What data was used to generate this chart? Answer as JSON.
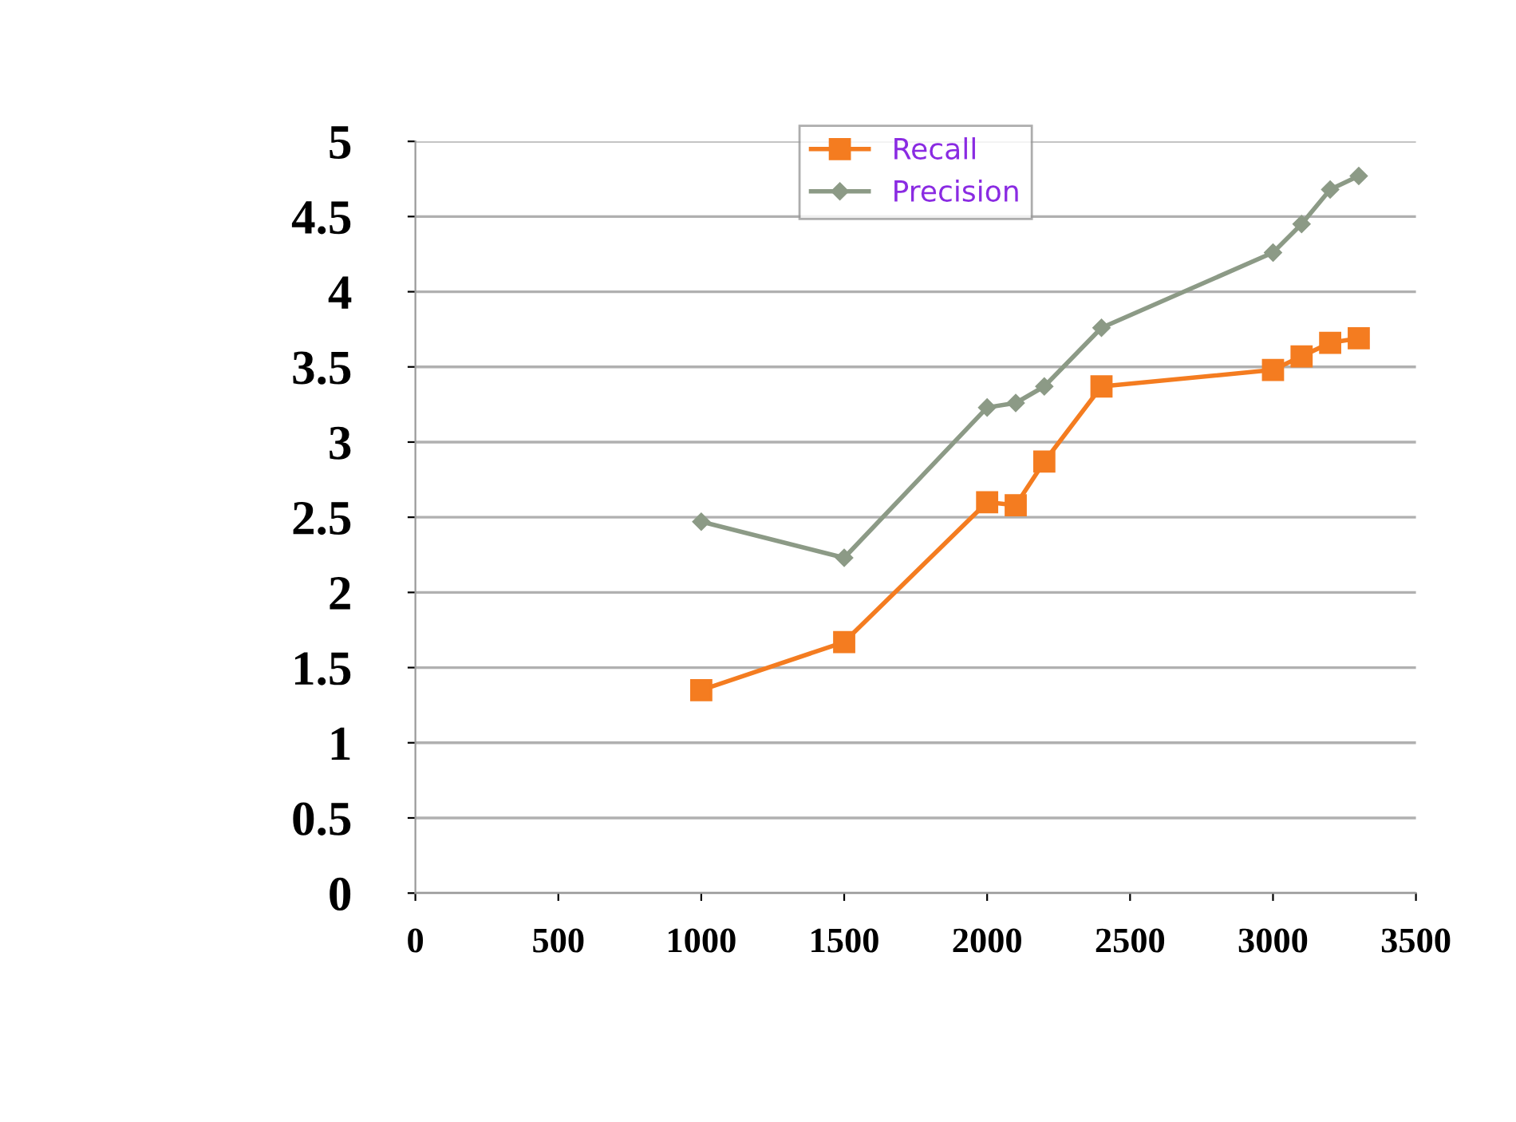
{
  "chart_data": {
    "type": "line",
    "x": [
      1000,
      1500,
      2000,
      2100,
      2200,
      2400,
      3000,
      3100,
      3200,
      3300
    ],
    "series": [
      {
        "name": "Recall",
        "color": "#f47c20",
        "marker": "square",
        "values": [
          1.35,
          1.67,
          2.6,
          2.58,
          2.87,
          3.37,
          3.48,
          3.57,
          3.66,
          3.69
        ]
      },
      {
        "name": "Precision",
        "color": "#8c9a86",
        "marker": "diamond",
        "values": [
          2.47,
          2.23,
          3.23,
          3.26,
          3.37,
          3.76,
          4.26,
          4.45,
          4.68,
          4.77
        ]
      }
    ],
    "xlim": [
      0,
      3500
    ],
    "xticks": [
      0,
      500,
      1000,
      1500,
      2000,
      2500,
      3000,
      3500
    ],
    "ylim": [
      0,
      5
    ],
    "yticks": [
      0,
      0.5,
      1,
      1.5,
      2,
      2.5,
      3,
      3.5,
      4,
      4.5,
      5
    ],
    "grid": "y",
    "legend": "top",
    "line_style": "solid"
  }
}
